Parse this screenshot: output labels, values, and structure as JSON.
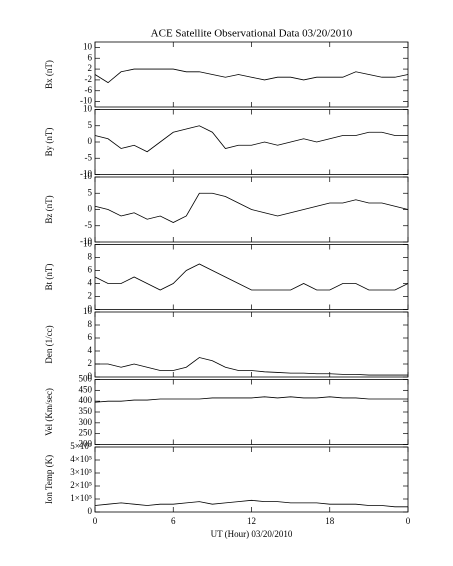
{
  "chart_data": [
    {
      "type": "line",
      "title": "ACE Satellite Observational Data   03/20/2010",
      "ylabel": "Bx (nT)",
      "color": "#000000",
      "x": [
        0,
        1,
        2,
        3,
        4,
        5,
        6,
        7,
        8,
        9,
        10,
        11,
        12,
        13,
        14,
        15,
        16,
        17,
        18,
        19,
        20,
        21,
        22,
        23,
        24
      ],
      "values": [
        0,
        -3,
        1,
        2,
        2,
        2,
        2,
        1,
        1,
        0,
        -1,
        0,
        -1,
        -2,
        -1,
        -1,
        -2,
        -1,
        -1,
        -1,
        1,
        0,
        -1,
        -1,
        0
      ],
      "ylim": [
        -12,
        12
      ],
      "yticks": [
        -10,
        -6,
        -2,
        2,
        6,
        10
      ]
    },
    {
      "type": "line",
      "ylabel": "By (nT)",
      "color": "#000000",
      "x": [
        0,
        1,
        2,
        3,
        4,
        5,
        6,
        7,
        8,
        9,
        10,
        11,
        12,
        13,
        14,
        15,
        16,
        17,
        18,
        19,
        20,
        21,
        22,
        23,
        24
      ],
      "values": [
        2,
        1,
        -2,
        -1,
        -3,
        0,
        3,
        4,
        5,
        3,
        -2,
        -1,
        -1,
        0,
        -1,
        0,
        1,
        0,
        1,
        2,
        2,
        3,
        3,
        2,
        2
      ],
      "ylim": [
        -10,
        10
      ],
      "yticks": [
        -10,
        -5,
        0,
        5,
        10
      ]
    },
    {
      "type": "line",
      "ylabel": "Bz (nT)",
      "color": "#000000",
      "x": [
        0,
        1,
        2,
        3,
        4,
        5,
        6,
        7,
        8,
        9,
        10,
        11,
        12,
        13,
        14,
        15,
        16,
        17,
        18,
        19,
        20,
        21,
        22,
        23,
        24
      ],
      "values": [
        1,
        0,
        -2,
        -1,
        -3,
        -2,
        -4,
        -2,
        5,
        5,
        4,
        2,
        0,
        -1,
        -2,
        -1,
        0,
        1,
        2,
        2,
        3,
        2,
        2,
        1,
        0
      ],
      "ylim": [
        -10,
        10
      ],
      "yticks": [
        -10,
        -5,
        0,
        5,
        10
      ]
    },
    {
      "type": "line",
      "ylabel": "Bt (nT)",
      "color": "#000000",
      "x": [
        0,
        1,
        2,
        3,
        4,
        5,
        6,
        7,
        8,
        9,
        10,
        11,
        12,
        13,
        14,
        15,
        16,
        17,
        18,
        19,
        20,
        21,
        22,
        23,
        24
      ],
      "values": [
        5,
        4,
        4,
        5,
        4,
        3,
        4,
        6,
        7,
        6,
        5,
        4,
        3,
        3,
        3,
        3,
        4,
        3,
        3,
        4,
        4,
        3,
        3,
        3,
        4
      ],
      "ylim": [
        0,
        10
      ],
      "yticks": [
        0,
        2,
        4,
        6,
        8,
        10
      ]
    },
    {
      "type": "line",
      "ylabel": "Den (1/cc)",
      "color": "#000000",
      "x": [
        0,
        1,
        2,
        3,
        4,
        5,
        6,
        7,
        8,
        9,
        10,
        11,
        12,
        13,
        14,
        15,
        16,
        17,
        18,
        19,
        20,
        21,
        22,
        23,
        24
      ],
      "values": [
        2,
        2,
        1.5,
        2,
        1.5,
        1,
        1,
        1.5,
        3,
        2.5,
        1.5,
        1,
        1,
        0.8,
        0.7,
        0.6,
        0.6,
        0.5,
        0.5,
        0.4,
        0.4,
        0.3,
        0.3,
        0.3,
        0.3
      ],
      "ylim": [
        0,
        10
      ],
      "yticks": [
        0,
        2,
        4,
        6,
        8,
        10
      ]
    },
    {
      "type": "line",
      "ylabel": "Vel (Km/sec)",
      "color": "#000000",
      "x": [
        0,
        1,
        2,
        3,
        4,
        5,
        6,
        7,
        8,
        9,
        10,
        11,
        12,
        13,
        14,
        15,
        16,
        17,
        18,
        19,
        20,
        21,
        22,
        23,
        24
      ],
      "values": [
        395,
        400,
        400,
        405,
        405,
        410,
        410,
        410,
        410,
        415,
        415,
        415,
        415,
        420,
        415,
        420,
        415,
        415,
        420,
        415,
        415,
        410,
        410,
        410,
        410
      ],
      "ylim": [
        200,
        500
      ],
      "yticks": [
        200,
        250,
        300,
        350,
        400,
        450,
        500
      ]
    },
    {
      "type": "line",
      "ylabel": "Ion Temp (K)",
      "xlabel": "UT (Hour)   03/20/2010",
      "color": "#000000",
      "x": [
        0,
        1,
        2,
        3,
        4,
        5,
        6,
        7,
        8,
        9,
        10,
        11,
        12,
        13,
        14,
        15,
        16,
        17,
        18,
        19,
        20,
        21,
        22,
        23,
        24
      ],
      "values": [
        50000,
        60000,
        70000,
        60000,
        50000,
        60000,
        60000,
        70000,
        80000,
        60000,
        70000,
        80000,
        90000,
        80000,
        80000,
        70000,
        70000,
        70000,
        60000,
        60000,
        60000,
        50000,
        50000,
        40000,
        40000
      ],
      "ylim": [
        0,
        500000
      ],
      "yticks": [
        0,
        {
          "value": 100000,
          "label": "1×10⁵"
        },
        {
          "value": 200000,
          "label": "2×10⁵"
        },
        {
          "value": 300000,
          "label": "3×10⁵"
        },
        {
          "value": 400000,
          "label": "4×10⁵"
        },
        {
          "value": 500000,
          "label": "5×10⁵"
        }
      ],
      "xlim": [
        0,
        24
      ],
      "xticks": [
        0,
        6,
        12,
        18,
        {
          "value": 24,
          "label": "0"
        }
      ]
    }
  ]
}
